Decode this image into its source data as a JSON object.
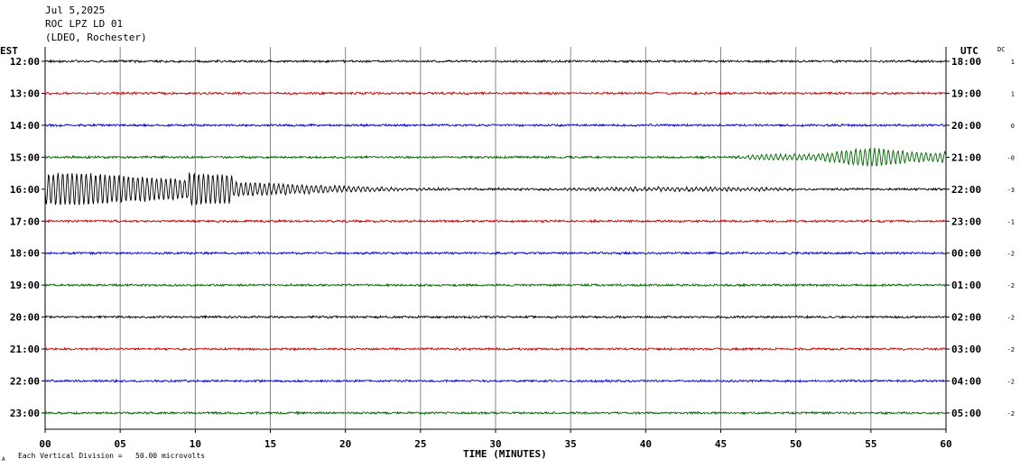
{
  "header": {
    "date": "Jul 5,2025",
    "station": "ROC LPZ LD 01",
    "network": "(LDEO, Rochester)"
  },
  "left_axis_label": "EST",
  "right_axis_label": "UTC",
  "dc_label": "DC",
  "footer": {
    "scale_note": "Each Vertical Division =   50.00 microvolts",
    "corner_mark": "A"
  },
  "colors": {
    "trace_cycle": [
      "#000000",
      "#cc0000",
      "#0000cc",
      "#006600"
    ],
    "grid": "#888888",
    "axis": "#000000"
  },
  "chart_data": {
    "type": "line",
    "title": "ROC LPZ LD 01",
    "xlabel": "TIME (MINUTES)",
    "x_ticks": [
      "00",
      "05",
      "10",
      "15",
      "20",
      "25",
      "30",
      "35",
      "40",
      "45",
      "50",
      "55",
      "60"
    ],
    "xlim": [
      0,
      60
    ],
    "grid": "vertical",
    "rows": [
      {
        "est": "12:00",
        "utc": "18:00",
        "dc": "1"
      },
      {
        "est": "13:00",
        "utc": "19:00",
        "dc": "1"
      },
      {
        "est": "14:00",
        "utc": "20:00",
        "dc": "0"
      },
      {
        "est": "15:00",
        "utc": "21:00",
        "dc": "-0"
      },
      {
        "est": "16:00",
        "utc": "22:00",
        "dc": "-3"
      },
      {
        "est": "17:00",
        "utc": "23:00",
        "dc": "-1"
      },
      {
        "est": "18:00",
        "utc": "00:00",
        "dc": "-2"
      },
      {
        "est": "19:00",
        "utc": "01:00",
        "dc": "-2"
      },
      {
        "est": "20:00",
        "utc": "02:00",
        "dc": "-2"
      },
      {
        "est": "21:00",
        "utc": "03:00",
        "dc": "-2"
      },
      {
        "est": "22:00",
        "utc": "04:00",
        "dc": "-2"
      },
      {
        "est": "23:00",
        "utc": "05:00",
        "dc": "-2"
      }
    ],
    "events": [
      {
        "row": 3,
        "start_min": 45,
        "end_min": 60,
        "peak": 0.55
      },
      {
        "row": 4,
        "start_min": 0,
        "end_min": 50,
        "peak": 1.0
      }
    ]
  }
}
